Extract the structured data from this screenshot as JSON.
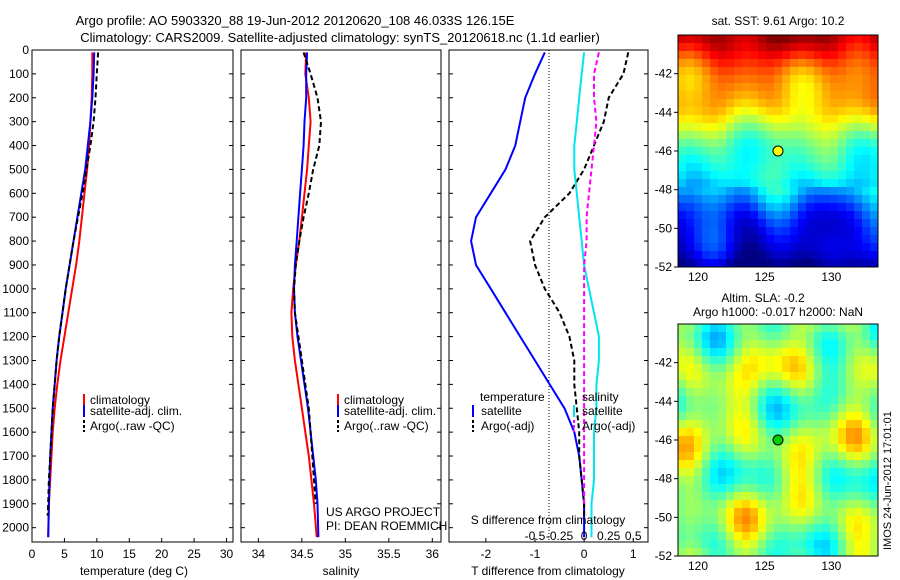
{
  "header": {
    "line1": "Argo profile: AO 5903320_88 19-Jun-2012 20120620_108 46.033S 126.15E",
    "line2": "Climatology: CARS2009. Satellite-adjusted climatology: synTS_20120618.nc (1.1d earlier)"
  },
  "side_stamp": "IMOS 24-Jun-2012 17:01:01",
  "chart_data": [
    {
      "type": "line",
      "xlabel": "temperature (deg C)",
      "xlim": [
        0,
        31
      ],
      "ylim": [
        0,
        2060
      ],
      "xticks": [
        "0",
        "5",
        "10",
        "15",
        "20",
        "25",
        "30"
      ],
      "yticks": [
        "0",
        "100",
        "200",
        "300",
        "400",
        "500",
        "600",
        "700",
        "800",
        "900",
        "1000",
        "1100",
        "1200",
        "1300",
        "1400",
        "1500",
        "1600",
        "1700",
        "1800",
        "1900",
        "2000"
      ],
      "legend": [
        "climatology",
        "satellite-adj. clim.",
        "Argo(..raw -QC)"
      ],
      "series": [
        {
          "name": "climatology",
          "color": "#ff0000",
          "dash": "",
          "points": [
            [
              9.3,
              10
            ],
            [
              9.3,
              100
            ],
            [
              9.2,
              200
            ],
            [
              9.0,
              300
            ],
            [
              8.8,
              400
            ],
            [
              8.5,
              500
            ],
            [
              8.1,
              600
            ],
            [
              7.7,
              700
            ],
            [
              7.3,
              800
            ],
            [
              6.8,
              900
            ],
            [
              6.2,
              1000
            ],
            [
              5.6,
              1100
            ],
            [
              5.0,
              1200
            ],
            [
              4.4,
              1300
            ],
            [
              3.9,
              1400
            ],
            [
              3.5,
              1500
            ],
            [
              3.2,
              1600
            ],
            [
              3.0,
              1700
            ],
            [
              2.8,
              1800
            ],
            [
              2.6,
              1900
            ],
            [
              2.5,
              2040
            ]
          ]
        },
        {
          "name": "satellite-adj. clim.",
          "color": "#0000ff",
          "dash": "",
          "points": [
            [
              9.6,
              10
            ],
            [
              9.5,
              100
            ],
            [
              9.3,
              200
            ],
            [
              9.0,
              300
            ],
            [
              8.6,
              400
            ],
            [
              8.2,
              500
            ],
            [
              7.6,
              600
            ],
            [
              7.0,
              700
            ],
            [
              6.4,
              800
            ],
            [
              5.8,
              900
            ],
            [
              5.2,
              1000
            ],
            [
              4.7,
              1100
            ],
            [
              4.2,
              1200
            ],
            [
              3.8,
              1300
            ],
            [
              3.5,
              1400
            ],
            [
              3.2,
              1500
            ],
            [
              3.0,
              1600
            ],
            [
              2.8,
              1700
            ],
            [
              2.7,
              1800
            ],
            [
              2.6,
              1900
            ],
            [
              2.5,
              2040
            ]
          ]
        },
        {
          "name": "Argo(..raw -QC)",
          "color": "#000000",
          "dash": "5,3",
          "points": [
            [
              10.2,
              10
            ],
            [
              10.0,
              100
            ],
            [
              9.8,
              200
            ],
            [
              9.5,
              300
            ],
            [
              9.0,
              400
            ],
            [
              8.4,
              500
            ],
            [
              7.8,
              600
            ],
            [
              7.1,
              700
            ],
            [
              6.4,
              800
            ],
            [
              5.8,
              900
            ],
            [
              5.2,
              1000
            ],
            [
              4.7,
              1100
            ],
            [
              4.2,
              1200
            ],
            [
              3.8,
              1300
            ],
            [
              3.5,
              1400
            ],
            [
              3.2,
              1500
            ],
            [
              3.0,
              1600
            ],
            [
              2.8,
              1700
            ],
            [
              2.6,
              1800
            ],
            [
              2.5,
              1900
            ],
            [
              2.4,
              1950
            ]
          ]
        }
      ]
    },
    {
      "type": "line",
      "xlabel": "salinity",
      "xlim": [
        33.8,
        36.1
      ],
      "ylim": [
        0,
        2060
      ],
      "xticks": [
        "34",
        "34.5",
        "35",
        "35.5",
        "36"
      ],
      "legend": [
        "climatology",
        "satellite-adj. clim.",
        "Argo(..raw -QC)"
      ],
      "annotations": [
        "US ARGO PROJECT",
        "PI: DEAN ROEMMICH"
      ],
      "series": [
        {
          "name": "climatology",
          "color": "#ff0000",
          "dash": "",
          "points": [
            [
              34.55,
              10
            ],
            [
              34.54,
              100
            ],
            [
              34.58,
              200
            ],
            [
              34.6,
              300
            ],
            [
              34.58,
              400
            ],
            [
              34.56,
              500
            ],
            [
              34.53,
              600
            ],
            [
              34.5,
              700
            ],
            [
              34.47,
              800
            ],
            [
              34.43,
              900
            ],
            [
              34.4,
              1000
            ],
            [
              34.38,
              1100
            ],
            [
              34.39,
              1200
            ],
            [
              34.42,
              1300
            ],
            [
              34.46,
              1400
            ],
            [
              34.5,
              1500
            ],
            [
              34.54,
              1600
            ],
            [
              34.58,
              1700
            ],
            [
              34.61,
              1800
            ],
            [
              34.64,
              1900
            ],
            [
              34.67,
              2040
            ]
          ]
        },
        {
          "name": "satellite-adj. clim.",
          "color": "#0000ff",
          "dash": "",
          "points": [
            [
              34.56,
              10
            ],
            [
              34.55,
              100
            ],
            [
              34.55,
              200
            ],
            [
              34.53,
              300
            ],
            [
              34.52,
              400
            ],
            [
              34.5,
              500
            ],
            [
              34.48,
              600
            ],
            [
              34.46,
              700
            ],
            [
              34.44,
              800
            ],
            [
              34.42,
              900
            ],
            [
              34.41,
              1000
            ],
            [
              34.42,
              1100
            ],
            [
              34.45,
              1200
            ],
            [
              34.49,
              1300
            ],
            [
              34.53,
              1400
            ],
            [
              34.57,
              1500
            ],
            [
              34.6,
              1600
            ],
            [
              34.63,
              1700
            ],
            [
              34.66,
              1800
            ],
            [
              34.68,
              1900
            ],
            [
              34.69,
              2040
            ]
          ]
        },
        {
          "name": "Argo(..raw -QC)",
          "color": "#000000",
          "dash": "5,3",
          "points": [
            [
              34.52,
              10
            ],
            [
              34.6,
              100
            ],
            [
              34.68,
              200
            ],
            [
              34.72,
              300
            ],
            [
              34.7,
              400
            ],
            [
              34.63,
              500
            ],
            [
              34.58,
              600
            ],
            [
              34.52,
              700
            ],
            [
              34.47,
              800
            ],
            [
              34.43,
              900
            ],
            [
              34.41,
              1000
            ],
            [
              34.42,
              1100
            ],
            [
              34.46,
              1200
            ],
            [
              34.5,
              1300
            ],
            [
              34.54,
              1400
            ],
            [
              34.58,
              1500
            ],
            [
              34.6,
              1600
            ],
            [
              34.62,
              1700
            ],
            [
              34.64,
              1800
            ],
            [
              34.66,
              1900
            ]
          ]
        }
      ]
    },
    {
      "type": "line",
      "xlabel": "T difference from climatology",
      "xlabel_top": "S difference from climatology",
      "xlim": [
        -2.75,
        1.3
      ],
      "ylim": [
        0,
        2060
      ],
      "xticks": [
        "-2",
        "-1",
        "0",
        "1"
      ],
      "top_ticks": [
        "-0.5",
        "-0.25",
        "0",
        "0.25",
        "0.5"
      ],
      "legend_left": {
        "title": "temperature",
        "items": [
          "satellite",
          "Argo(-adj)"
        ]
      },
      "legend_right": {
        "title": "salinity",
        "items": [
          "satellite",
          "Argo(-adj)"
        ]
      },
      "series": [
        {
          "name": "satellite",
          "group": "temperature",
          "color": "#0000ff",
          "dash": "",
          "points": [
            [
              -0.8,
              10
            ],
            [
              -1.0,
              100
            ],
            [
              -1.2,
              200
            ],
            [
              -1.3,
              300
            ],
            [
              -1.4,
              400
            ],
            [
              -1.6,
              500
            ],
            [
              -1.9,
              600
            ],
            [
              -2.2,
              700
            ],
            [
              -2.3,
              800
            ],
            [
              -2.2,
              900
            ],
            [
              -1.9,
              1000
            ],
            [
              -1.6,
              1100
            ],
            [
              -1.3,
              1200
            ],
            [
              -1.0,
              1300
            ],
            [
              -0.7,
              1400
            ],
            [
              -0.4,
              1500
            ],
            [
              -0.2,
              1600
            ],
            [
              -0.1,
              1700
            ],
            [
              -0.05,
              1800
            ],
            [
              0,
              1900
            ],
            [
              0,
              2040
            ]
          ]
        },
        {
          "name": "Argo(-adj)",
          "group": "temperature",
          "color": "#000000",
          "dash": "5,3",
          "points": [
            [
              0.9,
              10
            ],
            [
              0.8,
              100
            ],
            [
              0.5,
              200
            ],
            [
              0.4,
              300
            ],
            [
              0.2,
              400
            ],
            [
              0,
              500
            ],
            [
              -0.3,
              600
            ],
            [
              -0.8,
              700
            ],
            [
              -1.1,
              800
            ],
            [
              -1.0,
              900
            ],
            [
              -0.8,
              1000
            ],
            [
              -0.5,
              1100
            ],
            [
              -0.3,
              1200
            ],
            [
              -0.2,
              1300
            ],
            [
              -0.2,
              1400
            ],
            [
              -0.15,
              1500
            ],
            [
              -0.1,
              1600
            ],
            [
              -0.1,
              1700
            ],
            [
              -0.05,
              1800
            ],
            [
              0,
              1900
            ],
            [
              0,
              1950
            ]
          ]
        },
        {
          "name": "satellite",
          "group": "salinity",
          "color": "#00e5ee",
          "dash": "",
          "points": [
            [
              0,
              10
            ],
            [
              -0.05,
              100
            ],
            [
              -0.1,
              200
            ],
            [
              -0.15,
              300
            ],
            [
              -0.2,
              400
            ],
            [
              -0.2,
              500
            ],
            [
              -0.15,
              600
            ],
            [
              -0.1,
              700
            ],
            [
              -0.05,
              800
            ],
            [
              0,
              900
            ],
            [
              0.1,
              1000
            ],
            [
              0.2,
              1100
            ],
            [
              0.3,
              1200
            ],
            [
              0.3,
              1300
            ],
            [
              0.25,
              1400
            ],
            [
              0.25,
              1500
            ],
            [
              0.2,
              1600
            ],
            [
              0.2,
              1700
            ],
            [
              0.2,
              1800
            ],
            [
              0.15,
              1900
            ],
            [
              0.15,
              2040
            ]
          ]
        },
        {
          "name": "Argo(-adj)",
          "group": "salinity",
          "color": "#ff00ff",
          "dash": "5,3",
          "points": [
            [
              0.3,
              10
            ],
            [
              0.2,
              100
            ],
            [
              0.2,
              200
            ],
            [
              0.25,
              300
            ],
            [
              0.2,
              400
            ],
            [
              0.15,
              500
            ],
            [
              0.1,
              600
            ],
            [
              0.05,
              700
            ],
            [
              0.05,
              800
            ],
            [
              0,
              900
            ],
            [
              0,
              1000
            ],
            [
              0,
              1100
            ],
            [
              0,
              1200
            ],
            [
              0,
              1300
            ],
            [
              0,
              1400
            ],
            [
              0,
              1500
            ],
            [
              0,
              1600
            ],
            [
              0,
              1700
            ],
            [
              0,
              1800
            ],
            [
              0,
              1900
            ]
          ]
        }
      ]
    },
    {
      "type": "heatmap",
      "title": "sat. SST: 9.61  Argo: 10.2",
      "xlim": [
        118.5,
        133.5
      ],
      "ylim": [
        -52,
        -40
      ],
      "xticks": [
        "120",
        "125",
        "130"
      ],
      "yticks": [
        "-42",
        "-44",
        "-46",
        "-48",
        "-50",
        "-52"
      ],
      "marker": {
        "lon": 126.15,
        "lat": -46.033
      }
    },
    {
      "type": "heatmap",
      "title_line1": "Altim. SLA: -0.2",
      "title_line2": "Argo h1000: -0.017  h2000: NaN",
      "xlim": [
        118.5,
        133.5
      ],
      "ylim": [
        -52,
        -40
      ],
      "xticks": [
        "120",
        "125",
        "130"
      ],
      "yticks": [
        "-42",
        "-44",
        "-46",
        "-48",
        "-50",
        "-52"
      ],
      "marker": {
        "lon": 126.15,
        "lat": -46.033
      }
    }
  ]
}
